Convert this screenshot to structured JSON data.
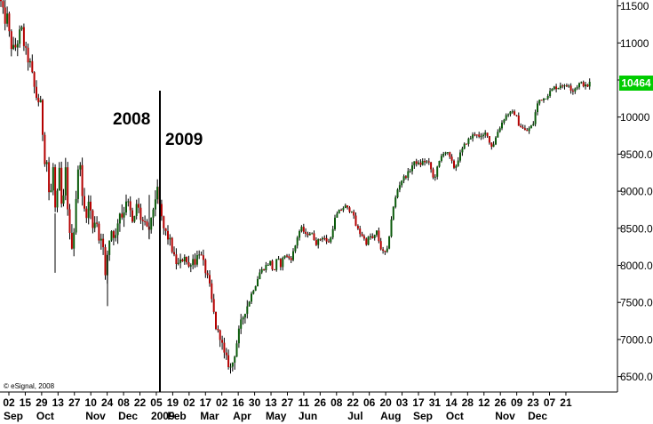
{
  "chart_data": {
    "type": "candlestick",
    "title": "",
    "xlabel": "",
    "ylabel": "",
    "ylim": [
      6150,
      11600
    ],
    "y_ticks": [
      {
        "value": 11500,
        "label": "11500"
      },
      {
        "value": 11000,
        "label": "11000"
      },
      {
        "value": 10500,
        "label": "10500"
      },
      {
        "value": 10000,
        "label": "10000"
      },
      {
        "value": 9500,
        "label": "9500.00"
      },
      {
        "value": 9000,
        "label": "9000.00"
      },
      {
        "value": 8500,
        "label": "8500.00"
      },
      {
        "value": 8000,
        "label": "8000.00"
      },
      {
        "value": 7500,
        "label": "7500.00"
      },
      {
        "value": 7000,
        "label": "7000.00"
      },
      {
        "value": 6500,
        "label": "6500.00"
      }
    ],
    "x_day_ticks": [
      "02",
      "15",
      "29",
      "13",
      "27",
      "10",
      "24",
      "08",
      "22",
      "05",
      "19",
      "02",
      "17",
      "02",
      "16",
      "30",
      "13",
      "27",
      "11",
      "26",
      "08",
      "22",
      "06",
      "20",
      "03",
      "17",
      "31",
      "14",
      "28",
      "12",
      "26",
      "09",
      "23",
      "07",
      "21"
    ],
    "x_month_labels": [
      {
        "label": "Sep",
        "index": 0
      },
      {
        "label": "Oct",
        "index": 2
      },
      {
        "label": "Nov",
        "index": 5
      },
      {
        "label": "Dec",
        "index": 7
      },
      {
        "label": "2009",
        "index": 9
      },
      {
        "label": "Feb",
        "index": 10
      },
      {
        "label": "Mar",
        "index": 12
      },
      {
        "label": "Apr",
        "index": 14
      },
      {
        "label": "May",
        "index": 16
      },
      {
        "label": "Jun",
        "index": 18
      },
      {
        "label": "Jul",
        "index": 21
      },
      {
        "label": "Aug",
        "index": 23
      },
      {
        "label": "Sep",
        "index": 25
      },
      {
        "label": "Oct",
        "index": 27
      },
      {
        "label": "Nov",
        "index": 30
      },
      {
        "label": "Dec",
        "index": 32
      }
    ],
    "anchors": [
      [
        0,
        11600
      ],
      [
        5,
        11300
      ],
      [
        8,
        11350
      ],
      [
        11,
        11050
      ],
      [
        14,
        10900
      ],
      [
        18,
        10950
      ],
      [
        24,
        11200
      ],
      [
        28,
        10900
      ],
      [
        34,
        10700
      ],
      [
        40,
        10300
      ],
      [
        46,
        10150
      ],
      [
        50,
        9450
      ],
      [
        53,
        9400
      ],
      [
        56,
        8800
      ],
      [
        60,
        9350
      ],
      [
        63,
        8500
      ],
      [
        66,
        9400
      ],
      [
        70,
        8650
      ],
      [
        74,
        9300
      ],
      [
        78,
        8400
      ],
      [
        82,
        8250
      ],
      [
        86,
        9000
      ],
      [
        90,
        9500
      ],
      [
        93,
        8800
      ],
      [
        97,
        8700
      ],
      [
        101,
        8900
      ],
      [
        104,
        8450
      ],
      [
        108,
        8700
      ],
      [
        112,
        8300
      ],
      [
        115,
        8500
      ],
      [
        118,
        7750
      ],
      [
        122,
        8300
      ],
      [
        126,
        8500
      ],
      [
        130,
        8350
      ],
      [
        134,
        8750
      ],
      [
        138,
        8650
      ],
      [
        142,
        8900
      ],
      [
        146,
        8750
      ],
      [
        150,
        8500
      ],
      [
        154,
        8850
      ],
      [
        158,
        8650
      ],
      [
        162,
        8550
      ],
      [
        166,
        8450
      ],
      [
        170,
        8550
      ],
      [
        174,
        8900
      ],
      [
        178,
        9000
      ],
      [
        180,
        8750
      ],
      [
        184,
        8500
      ],
      [
        188,
        8400
      ],
      [
        192,
        8300
      ],
      [
        196,
        8100
      ],
      [
        200,
        8000
      ],
      [
        204,
        8050
      ],
      [
        208,
        8150
      ],
      [
        212,
        7950
      ],
      [
        216,
        8100
      ],
      [
        220,
        8050
      ],
      [
        224,
        8200
      ],
      [
        228,
        8050
      ],
      [
        232,
        7900
      ],
      [
        236,
        7700
      ],
      [
        240,
        7400
      ],
      [
        244,
        7100
      ],
      [
        248,
        7050
      ],
      [
        252,
        6800
      ],
      [
        256,
        6700
      ],
      [
        260,
        6600
      ],
      [
        264,
        6800
      ],
      [
        268,
        7050
      ],
      [
        272,
        7250
      ],
      [
        276,
        7400
      ],
      [
        280,
        7500
      ],
      [
        284,
        7650
      ],
      [
        288,
        7750
      ],
      [
        292,
        7900
      ],
      [
        296,
        7950
      ],
      [
        300,
        8000
      ],
      [
        304,
        8050
      ],
      [
        308,
        7900
      ],
      [
        312,
        8100
      ],
      [
        316,
        8000
      ],
      [
        320,
        8150
      ],
      [
        324,
        8100
      ],
      [
        328,
        8100
      ],
      [
        332,
        8250
      ],
      [
        336,
        8450
      ],
      [
        340,
        8500
      ],
      [
        344,
        8400
      ],
      [
        348,
        8450
      ],
      [
        352,
        8400
      ],
      [
        356,
        8300
      ],
      [
        360,
        8350
      ],
      [
        364,
        8400
      ],
      [
        368,
        8300
      ],
      [
        372,
        8350
      ],
      [
        376,
        8600
      ],
      [
        380,
        8700
      ],
      [
        384,
        8750
      ],
      [
        388,
        8800
      ],
      [
        392,
        8750
      ],
      [
        396,
        8750
      ],
      [
        400,
        8550
      ],
      [
        404,
        8450
      ],
      [
        408,
        8400
      ],
      [
        412,
        8300
      ],
      [
        416,
        8400
      ],
      [
        420,
        8350
      ],
      [
        424,
        8450
      ],
      [
        428,
        8250
      ],
      [
        432,
        8150
      ],
      [
        436,
        8200
      ],
      [
        440,
        8600
      ],
      [
        444,
        8850
      ],
      [
        448,
        9050
      ],
      [
        452,
        9150
      ],
      [
        456,
        9200
      ],
      [
        460,
        9250
      ],
      [
        464,
        9350
      ],
      [
        468,
        9400
      ],
      [
        472,
        9350
      ],
      [
        476,
        9400
      ],
      [
        480,
        9400
      ],
      [
        484,
        9350
      ],
      [
        488,
        9150
      ],
      [
        492,
        9300
      ],
      [
        496,
        9450
      ],
      [
        500,
        9550
      ],
      [
        504,
        9500
      ],
      [
        508,
        9400
      ],
      [
        512,
        9300
      ],
      [
        516,
        9450
      ],
      [
        520,
        9550
      ],
      [
        524,
        9650
      ],
      [
        528,
        9700
      ],
      [
        532,
        9750
      ],
      [
        536,
        9800
      ],
      [
        540,
        9700
      ],
      [
        544,
        9750
      ],
      [
        548,
        9800
      ],
      [
        552,
        9600
      ],
      [
        556,
        9650
      ],
      [
        560,
        9800
      ],
      [
        564,
        9900
      ],
      [
        568,
        10000
      ],
      [
        572,
        10050
      ],
      [
        576,
        10050
      ],
      [
        580,
        10050
      ],
      [
        584,
        9900
      ],
      [
        588,
        9850
      ],
      [
        592,
        9800
      ],
      [
        596,
        9850
      ],
      [
        600,
        9900
      ],
      [
        604,
        10150
      ],
      [
        608,
        10250
      ],
      [
        612,
        10250
      ],
      [
        616,
        10300
      ],
      [
        620,
        10350
      ],
      [
        624,
        10400
      ],
      [
        628,
        10400
      ],
      [
        632,
        10450
      ],
      [
        636,
        10400
      ],
      [
        640,
        10450
      ],
      [
        644,
        10350
      ],
      [
        648,
        10400
      ],
      [
        652,
        10450
      ],
      [
        656,
        10450
      ],
      [
        660,
        10400
      ],
      [
        664,
        10464
      ]
    ],
    "last_value": 10464,
    "last_label": "10464",
    "annotations": [
      {
        "text": "2008",
        "position": "left of divider"
      },
      {
        "text": "2009",
        "position": "right of divider"
      }
    ],
    "grid": false,
    "colors": {
      "up": "#0a5a0a",
      "down": "#b40000",
      "last_value_bg": "#00cc00",
      "axis": "#000000"
    }
  },
  "copyright": "© eSignal, 2008",
  "annotation_2008": "2008",
  "annotation_2009": "2009"
}
